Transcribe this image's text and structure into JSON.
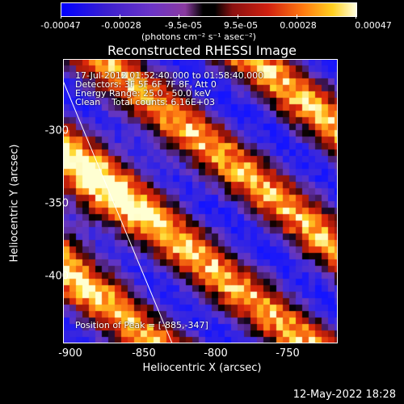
{
  "colorbar": {
    "ticks": [
      "-0.00047",
      "-0.00028",
      "-9.5e-05",
      "9.5e-05",
      "0.00028",
      "0.00047"
    ],
    "unit": "(photons cm⁻² s⁻¹ asec⁻²)"
  },
  "title": "Reconstructed RHESSI Image",
  "info": {
    "time": "17-Jul-2012 01:52:40.000 to 01:58:40.000",
    "detectors": "Detectors: 3F 5F 6F 7F 8F, Att 0",
    "energy": "Energy Range: 25.0 - 50.0 keV",
    "clean": "Clean    Total counts: 6.16E+03"
  },
  "peak": "Position of Peak = [-885,-347]",
  "axes": {
    "xlabel": "Heliocentric X (arcsec)",
    "ylabel": "Heliocentric Y (arcsec)",
    "xticks": [
      "-900",
      "-850",
      "-800",
      "-750"
    ],
    "yticks": [
      "-300",
      "-350",
      "-400"
    ]
  },
  "footer": "12-May-2022 18:28",
  "colors": {
    "blue": "#1a1aff",
    "purple": "#6a3ac0",
    "red": "#d02010",
    "orange": "#ff8a10",
    "yellow": "#ffe060"
  }
}
